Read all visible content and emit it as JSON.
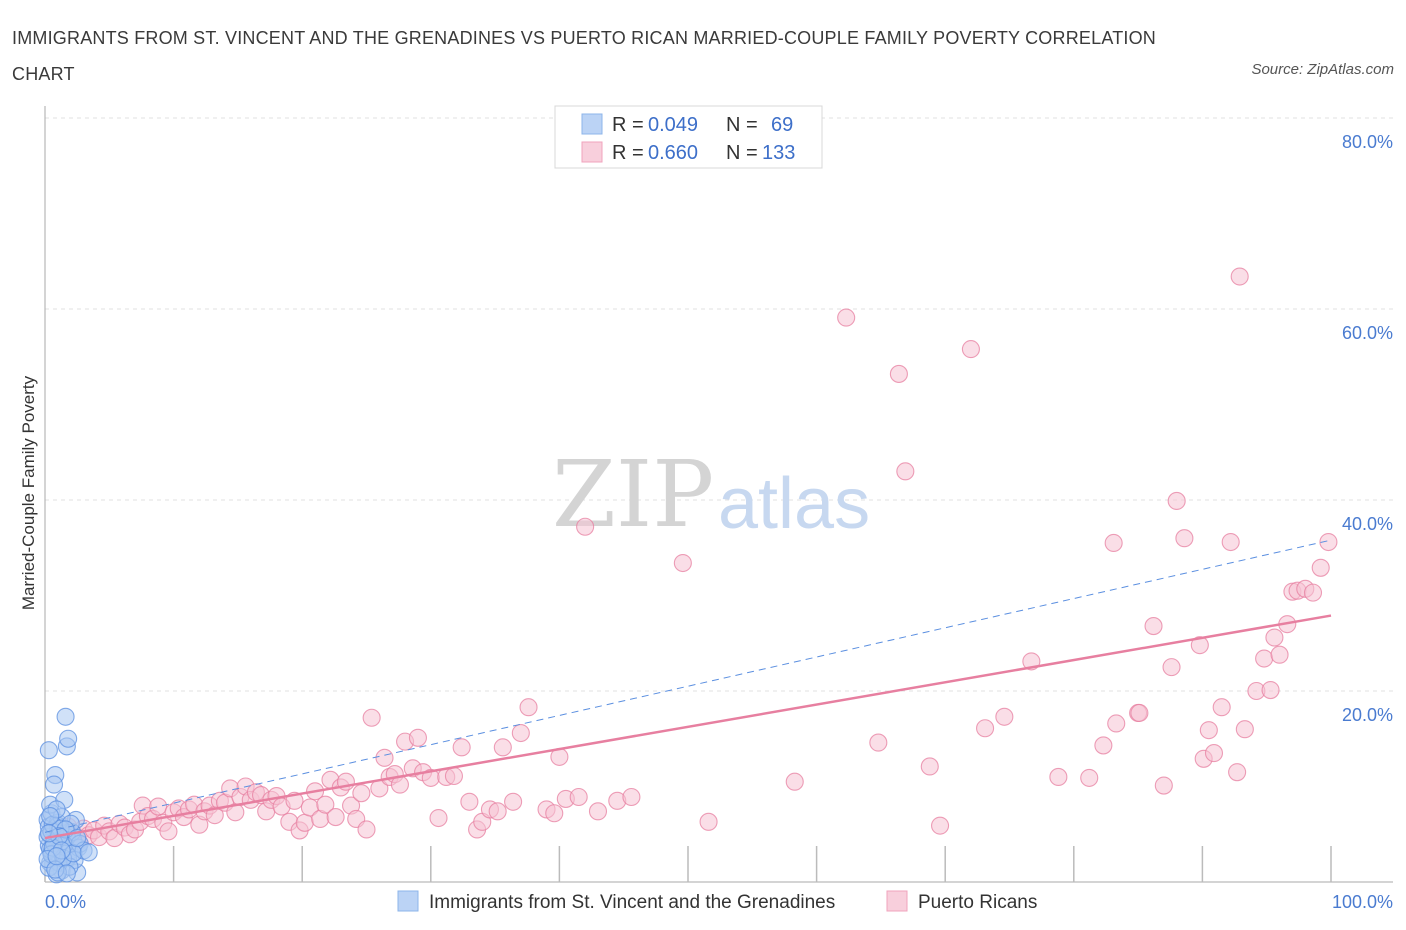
{
  "title": "IMMIGRANTS FROM ST. VINCENT AND THE GRENADINES VS PUERTO RICAN MARRIED-COUPLE FAMILY POVERTY CORRELATION CHART",
  "source": "Source: ZipAtlas.com",
  "watermark": {
    "zip": "ZIP",
    "atlas": "atlas"
  },
  "legend_top": [
    {
      "r_label": "R =",
      "r_value": "0.049",
      "n_label": "N =",
      "n_value": "69",
      "color": "#8db4ea"
    },
    {
      "r_label": "R =",
      "r_value": "0.660",
      "n_label": "N =",
      "n_value": "133",
      "color": "#f0a3bd"
    }
  ],
  "chart_data": {
    "type": "scatter",
    "xlabel": "",
    "ylabel": "Married-Couple Family Poverty",
    "xlim": [
      0,
      100
    ],
    "ylim": [
      0,
      80
    ],
    "x_tick_labels": [
      "0.0%",
      "100.0%"
    ],
    "y_ticks": [
      20,
      40,
      60,
      80
    ],
    "y_tick_labels": [
      "20.0%",
      "40.0%",
      "60.0%",
      "80.0%"
    ],
    "grid": true,
    "series": [
      {
        "name": "Immigrants from St. Vincent and the Grenadines",
        "color": "#5b8fe0",
        "fill": "#aac8f2",
        "trend": {
          "x": [
            0,
            100
          ],
          "y": [
            5.2,
            35.8
          ],
          "style": "dashed"
        },
        "points": [
          [
            0.2,
            6.5
          ],
          [
            0.3,
            5.8
          ],
          [
            0.4,
            4.9
          ],
          [
            0.5,
            7.2
          ],
          [
            0.3,
            3.8
          ],
          [
            0.6,
            2.6
          ],
          [
            0.8,
            4.4
          ],
          [
            0.4,
            8.1
          ],
          [
            0.7,
            5.5
          ],
          [
            1.0,
            6.2
          ],
          [
            0.5,
            3.1
          ],
          [
            0.9,
            2.2
          ],
          [
            1.2,
            4.0
          ],
          [
            0.6,
            1.7
          ],
          [
            1.4,
            5.0
          ],
          [
            0.8,
            11.2
          ],
          [
            1.1,
            3.5
          ],
          [
            0.3,
            13.8
          ],
          [
            1.6,
            17.3
          ],
          [
            1.7,
            14.2
          ],
          [
            1.8,
            15.0
          ],
          [
            1.5,
            8.6
          ],
          [
            0.7,
            10.2
          ],
          [
            2.0,
            2.8
          ],
          [
            2.2,
            4.4
          ],
          [
            1.9,
            3.2
          ],
          [
            0.4,
            2.0
          ],
          [
            1.3,
            1.2
          ],
          [
            2.5,
            1.0
          ],
          [
            0.9,
            0.8
          ],
          [
            1.0,
            5.9
          ],
          [
            2.4,
            6.5
          ],
          [
            0.2,
            4.7
          ],
          [
            1.8,
            2.6
          ],
          [
            2.6,
            3.6
          ],
          [
            0.5,
            5.3
          ],
          [
            1.3,
            6.8
          ],
          [
            0.8,
            3.0
          ],
          [
            1.7,
            4.7
          ],
          [
            2.1,
            5.2
          ],
          [
            0.6,
            6.0
          ],
          [
            1.1,
            2.0
          ],
          [
            0.3,
            1.5
          ],
          [
            0.9,
            7.6
          ],
          [
            1.5,
            3.9
          ],
          [
            2.3,
            2.3
          ],
          [
            0.4,
            3.4
          ],
          [
            1.2,
            5.6
          ],
          [
            0.7,
            4.1
          ],
          [
            1.9,
            1.6
          ],
          [
            0.5,
            2.9
          ],
          [
            1.4,
            2.5
          ],
          [
            2.7,
            4.0
          ],
          [
            3.0,
            3.3
          ],
          [
            1.0,
            1.0
          ],
          [
            0.6,
            3.6
          ],
          [
            2.0,
            6.1
          ],
          [
            0.2,
            2.4
          ],
          [
            1.6,
            5.5
          ],
          [
            0.8,
            1.3
          ],
          [
            2.2,
            3.0
          ],
          [
            1.1,
            4.8
          ],
          [
            0.4,
            6.9
          ],
          [
            1.3,
            3.3
          ],
          [
            0.9,
            2.7
          ],
          [
            3.4,
            3.1
          ],
          [
            1.7,
            0.9
          ],
          [
            0.3,
            5.1
          ],
          [
            2.5,
            4.6
          ]
        ]
      },
      {
        "name": "Puerto Ricans",
        "color": "#e77fa0",
        "fill": "#f6c3d3",
        "trend": {
          "x": [
            0,
            100
          ],
          "y": [
            4.6,
            27.9
          ],
          "style": "solid"
        },
        "points": [
          [
            0.6,
            4.5
          ],
          [
            1.0,
            5.2
          ],
          [
            1.4,
            4.8
          ],
          [
            1.8,
            5.8
          ],
          [
            2.2,
            5.1
          ],
          [
            2.6,
            4.3
          ],
          [
            3.0,
            5.6
          ],
          [
            3.4,
            4.9
          ],
          [
            3.8,
            5.4
          ],
          [
            4.2,
            4.7
          ],
          [
            4.6,
            5.9
          ],
          [
            5.0,
            5.3
          ],
          [
            5.4,
            4.6
          ],
          [
            5.8,
            6.1
          ],
          [
            6.2,
            5.7
          ],
          [
            6.6,
            5.0
          ],
          [
            7.0,
            5.5
          ],
          [
            7.4,
            6.3
          ],
          [
            7.6,
            8.0
          ],
          [
            8.0,
            6.9
          ],
          [
            8.4,
            6.6
          ],
          [
            8.8,
            7.9
          ],
          [
            9.2,
            6.2
          ],
          [
            9.6,
            5.3
          ],
          [
            10.0,
            7.3
          ],
          [
            10.4,
            7.7
          ],
          [
            10.8,
            6.8
          ],
          [
            11.2,
            7.6
          ],
          [
            11.6,
            8.1
          ],
          [
            12.0,
            6.0
          ],
          [
            12.4,
            7.4
          ],
          [
            12.8,
            8.0
          ],
          [
            13.2,
            7.0
          ],
          [
            13.6,
            8.5
          ],
          [
            14.0,
            8.3
          ],
          [
            14.4,
            9.8
          ],
          [
            14.8,
            7.3
          ],
          [
            15.2,
            8.9
          ],
          [
            15.6,
            10.0
          ],
          [
            16.0,
            8.6
          ],
          [
            16.4,
            9.4
          ],
          [
            16.8,
            9.1
          ],
          [
            17.2,
            7.4
          ],
          [
            17.6,
            8.6
          ],
          [
            18.0,
            9.0
          ],
          [
            18.4,
            7.9
          ],
          [
            19.0,
            6.3
          ],
          [
            19.4,
            8.5
          ],
          [
            19.8,
            5.4
          ],
          [
            20.2,
            6.2
          ],
          [
            20.6,
            7.8
          ],
          [
            21.0,
            9.5
          ],
          [
            21.4,
            6.6
          ],
          [
            21.8,
            8.1
          ],
          [
            22.2,
            10.7
          ],
          [
            22.6,
            6.8
          ],
          [
            23.0,
            9.9
          ],
          [
            23.4,
            10.5
          ],
          [
            23.8,
            8.0
          ],
          [
            24.2,
            6.6
          ],
          [
            24.6,
            9.3
          ],
          [
            25.0,
            5.5
          ],
          [
            25.4,
            17.2
          ],
          [
            26.0,
            9.8
          ],
          [
            26.4,
            13.0
          ],
          [
            26.8,
            11.0
          ],
          [
            27.2,
            11.3
          ],
          [
            27.6,
            10.2
          ],
          [
            28.0,
            14.7
          ],
          [
            28.6,
            11.9
          ],
          [
            29.0,
            15.1
          ],
          [
            29.4,
            11.5
          ],
          [
            30.0,
            10.9
          ],
          [
            30.6,
            6.7
          ],
          [
            31.2,
            11.0
          ],
          [
            31.8,
            11.1
          ],
          [
            32.4,
            14.1
          ],
          [
            33.0,
            8.4
          ],
          [
            33.6,
            5.5
          ],
          [
            34.0,
            6.3
          ],
          [
            34.6,
            7.6
          ],
          [
            35.2,
            7.4
          ],
          [
            35.6,
            14.1
          ],
          [
            36.4,
            8.4
          ],
          [
            37.0,
            15.6
          ],
          [
            37.6,
            18.3
          ],
          [
            39.0,
            7.6
          ],
          [
            39.6,
            7.2
          ],
          [
            40.0,
            13.1
          ],
          [
            40.5,
            8.7
          ],
          [
            41.5,
            8.9
          ],
          [
            42.0,
            37.2
          ],
          [
            43.0,
            7.4
          ],
          [
            44.5,
            8.5
          ],
          [
            45.6,
            8.9
          ],
          [
            49.6,
            33.4
          ],
          [
            51.6,
            6.3
          ],
          [
            58.3,
            10.5
          ],
          [
            62.3,
            59.1
          ],
          [
            64.8,
            14.6
          ],
          [
            66.4,
            53.2
          ],
          [
            66.9,
            43.0
          ],
          [
            68.8,
            12.1
          ],
          [
            69.6,
            5.9
          ],
          [
            72.0,
            55.8
          ],
          [
            73.1,
            16.1
          ],
          [
            74.6,
            17.3
          ],
          [
            76.7,
            23.1
          ],
          [
            78.8,
            11.0
          ],
          [
            81.2,
            10.9
          ],
          [
            82.3,
            14.3
          ],
          [
            83.1,
            35.5
          ],
          [
            83.3,
            16.6
          ],
          [
            85.0,
            17.7
          ],
          [
            85.1,
            17.7
          ],
          [
            86.2,
            26.8
          ],
          [
            87.0,
            10.1
          ],
          [
            87.6,
            22.5
          ],
          [
            88.0,
            39.9
          ],
          [
            88.6,
            36.0
          ],
          [
            89.8,
            24.8
          ],
          [
            90.1,
            12.9
          ],
          [
            90.5,
            15.9
          ],
          [
            90.9,
            13.5
          ],
          [
            91.5,
            18.3
          ],
          [
            92.2,
            35.6
          ],
          [
            92.7,
            11.5
          ],
          [
            92.9,
            63.4
          ],
          [
            93.3,
            16.0
          ],
          [
            94.2,
            20.0
          ],
          [
            94.8,
            23.4
          ],
          [
            95.3,
            20.1
          ],
          [
            95.6,
            25.6
          ],
          [
            96.0,
            23.8
          ],
          [
            96.6,
            27.0
          ],
          [
            97.0,
            30.4
          ],
          [
            97.4,
            30.5
          ],
          [
            98.0,
            30.7
          ],
          [
            98.6,
            30.3
          ],
          [
            99.2,
            32.9
          ],
          [
            99.8,
            35.6
          ]
        ]
      }
    ]
  }
}
